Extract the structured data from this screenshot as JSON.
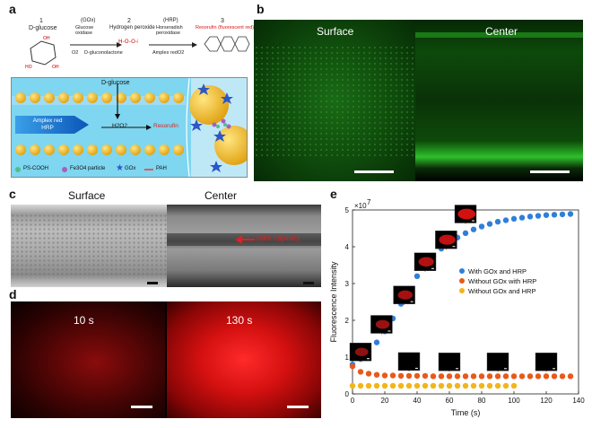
{
  "panels": {
    "a": {
      "letter": "a",
      "steps": [
        {
          "num": "1",
          "name": "D-glucose"
        },
        {
          "num": "2",
          "name": "Hydrogen peroxide"
        },
        {
          "num": "3",
          "name": "Resorufin (fluorescent red)"
        }
      ],
      "enzymes": [
        {
          "abbr": "(GOx)",
          "name": "Glucose oxidase",
          "cofactor": "O2",
          "product": "D-gluconolactone"
        },
        {
          "abbr": "(HRP)",
          "name": "Horseradish peroxidase",
          "cofactor": "Amplex red",
          "product": "O2"
        }
      ],
      "schematic": {
        "glucose_label": "D-glucose",
        "arrow_label": "Amplex red\nHRP",
        "h2o2_label": "H2O2",
        "resorufin_label": "Resorufin"
      },
      "legend": [
        {
          "label": "PS-COOH",
          "color": "#4fbf8a"
        },
        {
          "label": "Fe3O4 particle",
          "color": "#a65fc0"
        },
        {
          "label": "GOx",
          "color": "#2b57c8"
        },
        {
          "label": "PAH",
          "color": "#e05a5a"
        }
      ]
    },
    "b": {
      "letter": "b",
      "left_title": "Surface",
      "right_title": "Center"
    },
    "c": {
      "letter": "c",
      "left_title": "Surface",
      "right_title": "Center",
      "annotation": "Dark capillary"
    },
    "d": {
      "letter": "d",
      "left_title": "10 s",
      "right_title": "130 s"
    },
    "e": {
      "letter": "e"
    }
  },
  "chart_data": {
    "type": "scatter",
    "xlabel": "Time (s)",
    "ylabel": "Fluorescence Intensity",
    "exponent_label": "×10",
    "exponent_power": "7",
    "xlim": [
      0,
      140
    ],
    "ylim": [
      0,
      5
    ],
    "xticks": [
      0,
      20,
      40,
      60,
      80,
      100,
      120,
      140
    ],
    "yticks": [
      0,
      1,
      2,
      3,
      4,
      5
    ],
    "legend_position": "right",
    "series": [
      {
        "name": "With GOx and HRP",
        "color": "#2f7fd8",
        "x": [
          0,
          5,
          10,
          15,
          20,
          25,
          30,
          35,
          40,
          45,
          50,
          55,
          60,
          65,
          70,
          75,
          80,
          85,
          90,
          95,
          100,
          105,
          110,
          115,
          120,
          125,
          130,
          135
        ],
        "values": [
          0.8,
          0.95,
          1.15,
          1.4,
          1.7,
          2.05,
          2.45,
          2.85,
          3.2,
          3.5,
          3.75,
          3.95,
          4.1,
          4.25,
          4.37,
          4.47,
          4.55,
          4.62,
          4.68,
          4.72,
          4.76,
          4.79,
          4.82,
          4.84,
          4.86,
          4.87,
          4.88,
          4.89
        ]
      },
      {
        "name": "Without GOx with HRP",
        "color": "#e8591a",
        "x": [
          0,
          5,
          10,
          15,
          20,
          25,
          30,
          35,
          40,
          45,
          50,
          55,
          60,
          65,
          70,
          75,
          80,
          85,
          90,
          95,
          100,
          105,
          110,
          115,
          120,
          125,
          130,
          135
        ],
        "values": [
          0.75,
          0.6,
          0.55,
          0.52,
          0.5,
          0.5,
          0.49,
          0.49,
          0.49,
          0.49,
          0.48,
          0.48,
          0.48,
          0.48,
          0.48,
          0.48,
          0.48,
          0.48,
          0.48,
          0.48,
          0.48,
          0.48,
          0.48,
          0.48,
          0.48,
          0.48,
          0.48,
          0.48
        ]
      },
      {
        "name": "Without GOx and HRP",
        "color": "#f2b51a",
        "x": [
          0,
          5,
          10,
          15,
          20,
          25,
          30,
          35,
          40,
          45,
          50,
          55,
          60,
          65,
          70,
          75,
          80,
          85,
          90,
          95,
          100
        ],
        "values": [
          0.22,
          0.22,
          0.22,
          0.22,
          0.22,
          0.22,
          0.22,
          0.22,
          0.22,
          0.22,
          0.22,
          0.22,
          0.22,
          0.22,
          0.22,
          0.22,
          0.22,
          0.22,
          0.22,
          0.22,
          0.22
        ]
      }
    ],
    "insets": [
      {
        "x": 5,
        "y": 0.75,
        "brightness": 0.35
      },
      {
        "x": 18,
        "y": 1.5,
        "brightness": 0.45
      },
      {
        "x": 32,
        "y": 2.3,
        "brightness": 0.55
      },
      {
        "x": 45,
        "y": 3.2,
        "brightness": 0.65
      },
      {
        "x": 58,
        "y": 3.8,
        "brightness": 0.8
      },
      {
        "x": 70,
        "y": 4.5,
        "brightness": 0.95
      },
      {
        "x": 35,
        "y": 0.49,
        "brightness": 0.05
      },
      {
        "x": 60,
        "y": 0.48,
        "brightness": 0.05
      },
      {
        "x": 90,
        "y": 0.48,
        "brightness": 0.05
      },
      {
        "x": 120,
        "y": 0.48,
        "brightness": 0.05
      }
    ]
  }
}
